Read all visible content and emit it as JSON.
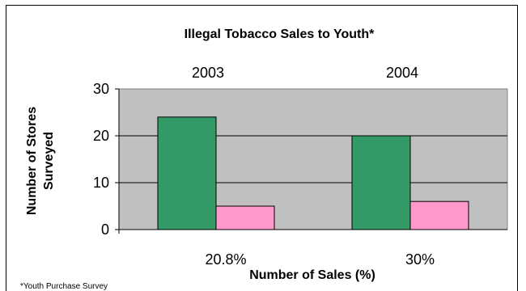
{
  "chart_data": {
    "type": "bar",
    "title": "Illegal Tobacco Sales to Youth*",
    "xlabel": "Number of Sales (%)",
    "ylabel": [
      "Number of Stores",
      "Surveyed"
    ],
    "footnote": "*Youth Purchase Survey",
    "ylim": [
      0,
      30
    ],
    "yticks": [
      0,
      10,
      20,
      30
    ],
    "grid": true,
    "legend": "none",
    "groups": [
      {
        "top_label": "2003",
        "bottom_label": "20.8%",
        "values": [
          24,
          5
        ]
      },
      {
        "top_label": "2004",
        "bottom_label": "30%",
        "values": [
          20,
          6
        ]
      }
    ],
    "series_colors": [
      "#339966",
      "#ff99cc"
    ],
    "plot_background": "#c0c0c0"
  }
}
